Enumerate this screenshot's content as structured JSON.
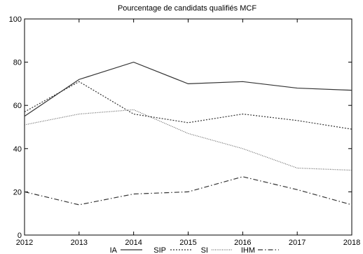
{
  "chart_data": {
    "type": "line",
    "title": "Pourcentage de candidats qualifiés MCF",
    "xlabel": "",
    "ylabel": "",
    "x": [
      "2012",
      "2013",
      "2014",
      "2015",
      "2016",
      "2017",
      "2018"
    ],
    "xlim": [
      2012,
      2018
    ],
    "ylim": [
      0,
      100
    ],
    "yticks": [
      "0",
      "20",
      "40",
      "60",
      "80",
      "100"
    ],
    "grid": false,
    "legend_position": "bottom",
    "series": [
      {
        "name": "IA",
        "values": [
          55,
          72,
          80,
          70,
          71,
          68,
          67
        ],
        "dash": "solid",
        "color": "#333333"
      },
      {
        "name": "SIP",
        "values": [
          57,
          71,
          56,
          52,
          56,
          53,
          49
        ],
        "dash": "dotted",
        "color": "#333333"
      },
      {
        "name": "SI",
        "values": [
          51,
          56,
          58,
          47,
          40,
          31,
          30
        ],
        "dash": "fine-dot",
        "color": "#666666"
      },
      {
        "name": "IHM",
        "values": [
          20,
          14,
          19,
          20,
          27,
          21,
          14
        ],
        "dash": "dash-dot",
        "color": "#333333"
      }
    ]
  }
}
